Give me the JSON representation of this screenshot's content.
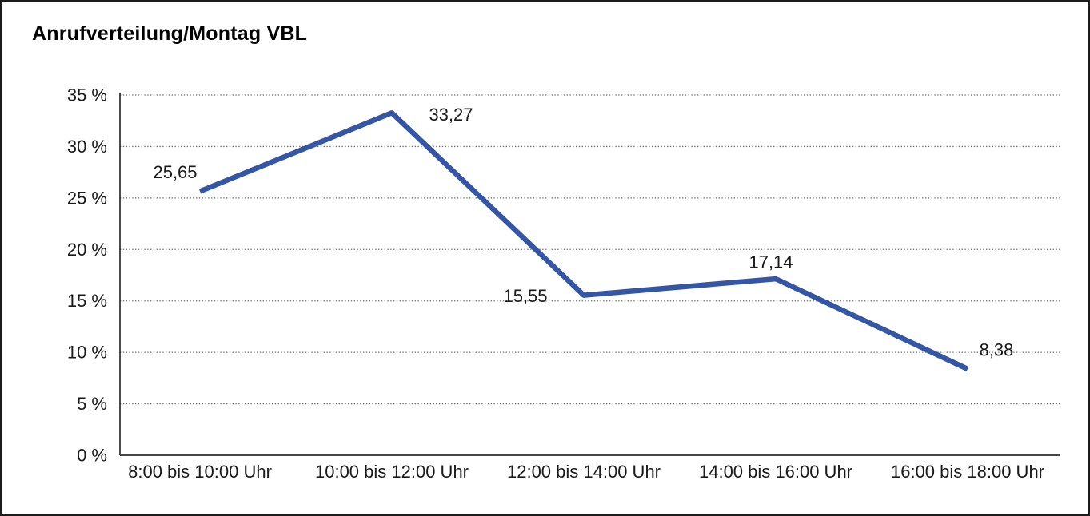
{
  "page": {
    "title": "Anrufverteilung/Montag VBL"
  },
  "chart_data": {
    "type": "line",
    "title": "Anrufverteilung/Montag VBL",
    "categories": [
      "8:00 bis 10:00 Uhr",
      "10:00 bis 12:00 Uhr",
      "12:00 bis 14:00 Uhr",
      "14:00 bis 16:00 Uhr",
      "16:00 bis 18:00 Uhr"
    ],
    "values": [
      25.65,
      33.27,
      15.55,
      17.14,
      8.38
    ],
    "value_labels": [
      "25,65",
      "33,27",
      "15,55",
      "17,14",
      "8,38"
    ],
    "xlabel": "",
    "ylabel": "",
    "ylim": [
      0,
      35
    ],
    "ytick_step": 5,
    "ytick_labels": [
      "0 %",
      "5 %",
      "10 %",
      "15 %",
      "20 %",
      "25 %",
      "30 %",
      "35 %"
    ],
    "grid": "horizontal-dotted",
    "legend": null,
    "colors": {
      "line": "#3456a4",
      "gridline": "#6e6e6e",
      "axis": "#2b2b2b",
      "text": "#1a1a1a"
    }
  }
}
